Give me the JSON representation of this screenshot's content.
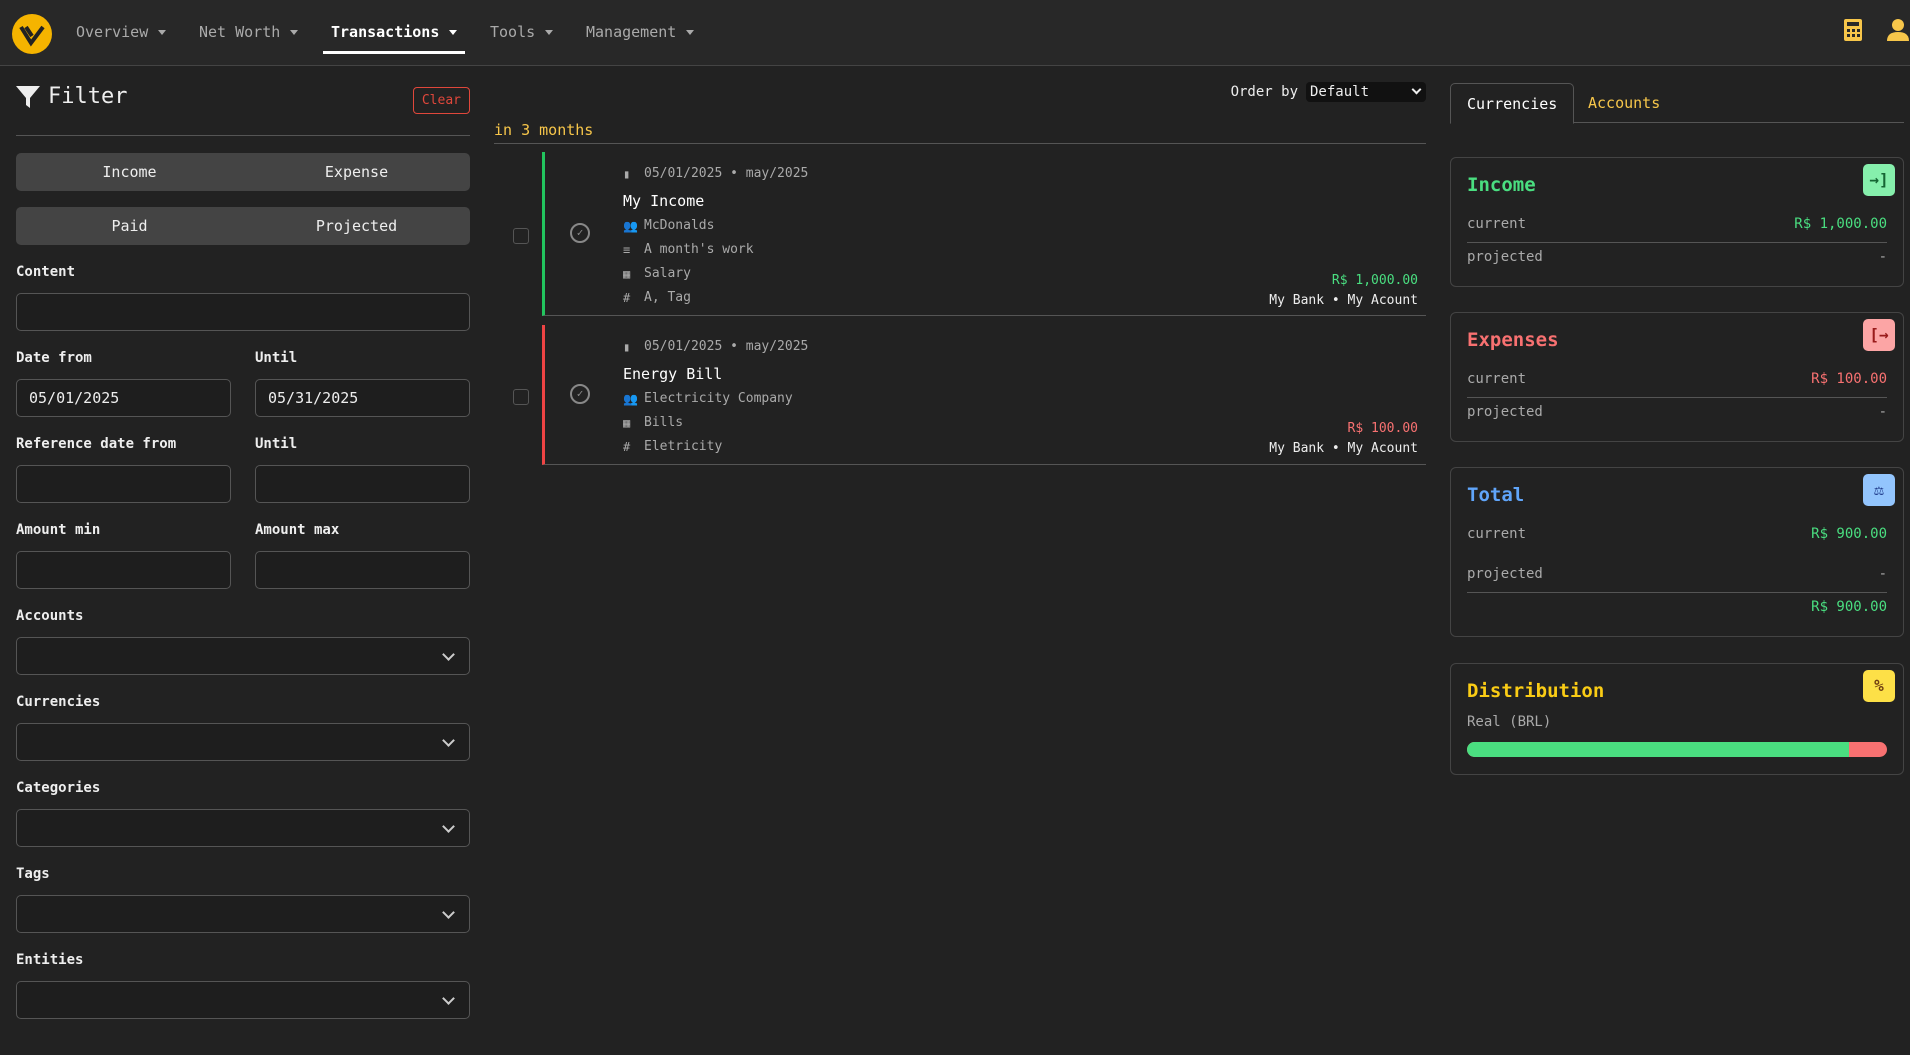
{
  "nav": {
    "items": [
      {
        "label": "Overview"
      },
      {
        "label": "Net Worth"
      },
      {
        "label": "Transactions",
        "active": true
      },
      {
        "label": "Tools"
      },
      {
        "label": "Management"
      }
    ],
    "icons": [
      "calculator-icon",
      "user-icon"
    ]
  },
  "filter": {
    "title": "Filter",
    "clear": "Clear",
    "type_toggle": [
      "Income",
      "Expense"
    ],
    "status_toggle": [
      "Paid",
      "Projected"
    ],
    "content_label": "Content",
    "content_value": "",
    "date_from_label": "Date from",
    "date_from": "05/01/2025",
    "until_label": "Until",
    "date_until": "05/31/2025",
    "ref_from_label": "Reference date from",
    "ref_until_label": "Until",
    "amount_min_label": "Amount min",
    "amount_max_label": "Amount max",
    "accounts_label": "Accounts",
    "currencies_label": "Currencies",
    "categories_label": "Categories",
    "tags_label": "Tags",
    "entities_label": "Entities"
  },
  "list": {
    "order_label": "Order by",
    "order_value": "Default",
    "period": "in 3 months",
    "transactions": [
      {
        "date": "05/01/2025 • may/2025",
        "title": "My Income",
        "entity": "McDonalds",
        "description": "A month's work",
        "category": "Salary",
        "tags": "A, Tag",
        "amount": "R$ 1,000.00",
        "account": "My Bank • My Acount",
        "type": "income"
      },
      {
        "date": "05/01/2025 • may/2025",
        "title": "Energy Bill",
        "entity": "Electricity Company",
        "category": "Bills",
        "tags": "Eletricity",
        "amount": "R$ 100.00",
        "account": "My Bank • My Acount",
        "type": "expense"
      }
    ]
  },
  "summary": {
    "tabs": [
      "Currencies",
      "Accounts"
    ],
    "income": {
      "title": "Income",
      "current_label": "current",
      "current": "R$ 1,000.00",
      "projected_label": "projected",
      "projected": "-"
    },
    "expenses": {
      "title": "Expenses",
      "current_label": "current",
      "current": "R$ 100.00",
      "projected_label": "projected",
      "projected": "-"
    },
    "total": {
      "title": "Total",
      "current_label": "current",
      "current": "R$ 900.00",
      "projected_label": "projected",
      "projected": "-",
      "sum": "R$ 900.00"
    },
    "distribution": {
      "title": "Distribution",
      "currency": "Real (BRL)",
      "income_fraction": 0.909,
      "expense_fraction": 0.091
    }
  },
  "colors": {
    "income": "#4ade80",
    "expense": "#f87171",
    "total": "#60a5fa",
    "accent": "#f7c64a"
  }
}
